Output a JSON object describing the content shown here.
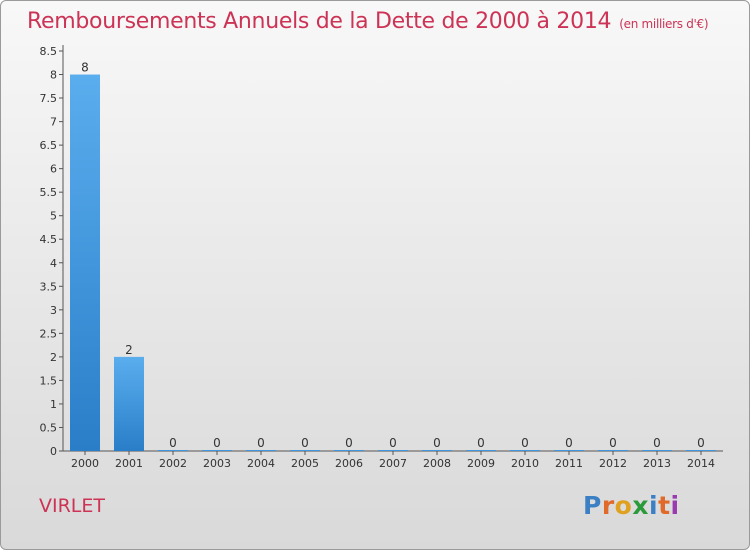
{
  "header": {
    "title": "Remboursements Annuels de la Dette de 2000 à 2014",
    "subtitle": "(en milliers d'€)"
  },
  "footer": {
    "commune": "VIRLET",
    "logo": {
      "p": "P",
      "r": "r",
      "o": "o",
      "x": "x",
      "i1": "i",
      "t": "t",
      "i2": "i",
      "colors": [
        "#3b7fc4",
        "#e06a2a",
        "#e0a020",
        "#2a9a3a",
        "#3b7fc4",
        "#e06a2a",
        "#9a3ab0"
      ]
    }
  },
  "colors": {
    "bar_light": "#5aaeee",
    "bar_dark": "#2a7ec8",
    "title": "#cc3355",
    "grid": "#aaaaaa"
  },
  "chart_data": {
    "type": "bar",
    "title": "Remboursements Annuels de la Dette de 2000 à 2014",
    "ylabel": "en milliers d'€",
    "xlabel": "",
    "categories": [
      "2000",
      "2001",
      "2002",
      "2003",
      "2004",
      "2005",
      "2006",
      "2007",
      "2008",
      "2009",
      "2010",
      "2011",
      "2012",
      "2013",
      "2014"
    ],
    "values": [
      8,
      2,
      0,
      0,
      0,
      0,
      0,
      0,
      0,
      0,
      0,
      0,
      0,
      0,
      0
    ],
    "ylim": [
      0,
      8.5
    ],
    "yticks": [
      "0",
      "0.5",
      "1",
      "1.5",
      "2",
      "2.5",
      "3",
      "3.5",
      "4",
      "4.5",
      "5",
      "5.5",
      "6",
      "6.5",
      "7",
      "7.5",
      "8",
      "8.5"
    ],
    "ytick_values": [
      0,
      0.5,
      1,
      1.5,
      2,
      2.5,
      3,
      3.5,
      4,
      4.5,
      5,
      5.5,
      6,
      6.5,
      7,
      7.5,
      8,
      8.5
    ]
  }
}
